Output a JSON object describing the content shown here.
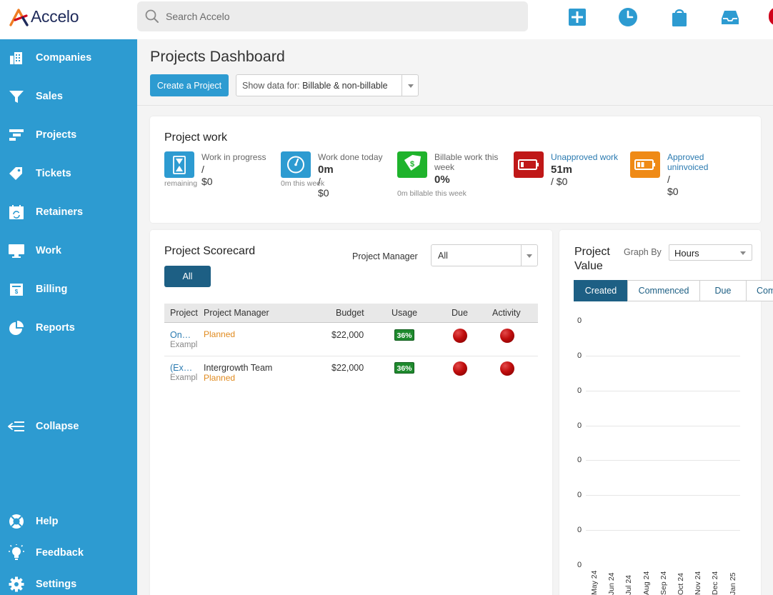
{
  "app": {
    "logo_text": "Accelo"
  },
  "search": {
    "placeholder": "Search Accelo"
  },
  "topbar_icons": [
    "plus-icon",
    "clock-icon",
    "shopping-bag-icon",
    "inbox-icon"
  ],
  "sidebar": {
    "items": [
      {
        "label": "Companies",
        "icon": "building-icon"
      },
      {
        "label": "Sales",
        "icon": "funnel-icon"
      },
      {
        "label": "Projects",
        "icon": "gantt-icon"
      },
      {
        "label": "Tickets",
        "icon": "tags-icon"
      },
      {
        "label": "Retainers",
        "icon": "calendar-refresh-icon"
      },
      {
        "label": "Work",
        "icon": "monitor-icon"
      },
      {
        "label": "Billing",
        "icon": "invoice-icon"
      },
      {
        "label": "Reports",
        "icon": "pie-chart-icon"
      }
    ],
    "collapse": "Collapse",
    "footer": [
      {
        "label": "Help",
        "icon": "lifebuoy-icon"
      },
      {
        "label": "Feedback",
        "icon": "lightbulb-icon"
      },
      {
        "label": "Settings",
        "icon": "gear-icon"
      }
    ]
  },
  "header": {
    "title": "Projects Dashboard",
    "create_button": "Create a Project",
    "show_data_prefix": "Show data for: ",
    "show_data_value": "Billable & non-billable"
  },
  "project_work": {
    "title": "Project work",
    "stats": [
      {
        "label": "Work in progress",
        "value_bold": "",
        "value_rest": "/ $0",
        "sub": "remaining",
        "color": "#2d9bd1",
        "icon": "hourglass-icon"
      },
      {
        "label": "Work done today",
        "value_bold": "0m",
        "value_rest": " / $0",
        "sub": "0m this week",
        "color": "#2d9bd1",
        "icon": "speedometer-icon"
      },
      {
        "label": "Billable work this week",
        "value_bold": "0%",
        "value_rest": "",
        "sub": "0m billable this week",
        "color": "#1fb32c",
        "icon": "price-tag-icon"
      },
      {
        "label": "Unapproved work",
        "value_bold": "51m",
        "value_rest": " / $0",
        "sub": "",
        "color": "#c01818",
        "icon": "battery-low-icon"
      },
      {
        "label": "Approved uninvoiced",
        "value_bold": "",
        "value_rest": "/ $0",
        "sub": "",
        "color": "#ef8a16",
        "icon": "battery-half-icon"
      }
    ]
  },
  "scorecard": {
    "title": "Project Scorecard",
    "manager_label": "Project Manager",
    "manager_value": "All",
    "tab_all": "All",
    "columns": [
      "Project",
      "Project Manager",
      "Budget",
      "Usage",
      "Due",
      "Activity"
    ],
    "rows": [
      {
        "project": "On…",
        "project_sub": "Exampl",
        "manager": "",
        "status": "Planned",
        "budget": "$22,000",
        "usage": "36%"
      },
      {
        "project": "(Ex…",
        "project_sub": "Exampl",
        "manager": "Intergrowth Team",
        "status": "Planned",
        "budget": "$22,000",
        "usage": "36%"
      }
    ]
  },
  "project_value": {
    "title_line1": "Project",
    "title_line2": "Value",
    "graph_by_label": "Graph By",
    "graph_by_value": "Hours",
    "segments": [
      "Created",
      "Commenced",
      "Due",
      "Com"
    ]
  },
  "chart_data": {
    "type": "line",
    "x": [
      "May 24",
      "Jun 24",
      "Jul 24",
      "Aug 24",
      "Sep 24",
      "Oct 24",
      "Nov 24",
      "Dec 24",
      "Jan 25"
    ],
    "ytick_labels": [
      "0",
      "0",
      "0",
      "0",
      "0",
      "0",
      "0",
      "0"
    ],
    "series": []
  },
  "colors": {
    "sidebar": "#2d9bd1",
    "primary_button": "#2d9bd1",
    "active_tab": "#1d5f84",
    "planned": "#e08a1e",
    "usage_badge": "#1f8a2e",
    "dot_red": "#c00d0d"
  }
}
